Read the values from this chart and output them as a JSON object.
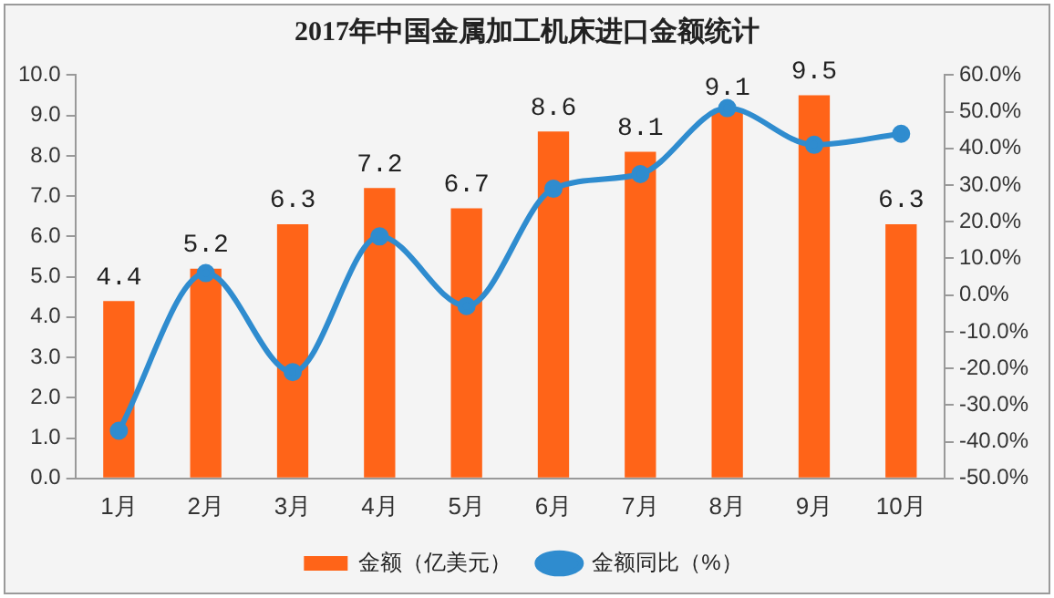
{
  "chart_data": {
    "type": "bar",
    "title": "2017年中国金属加工机床进口金额统计",
    "categories": [
      "1月",
      "2月",
      "3月",
      "4月",
      "5月",
      "6月",
      "7月",
      "8月",
      "9月",
      "10月"
    ],
    "series": [
      {
        "name": "金额（亿美元）",
        "type": "bar",
        "color": "#ff6418",
        "values": [
          4.4,
          5.2,
          6.3,
          7.2,
          6.7,
          8.6,
          8.1,
          9.1,
          9.5,
          6.3
        ],
        "value_labels": [
          "4.4",
          "5.2",
          "6.3",
          "7.2",
          "6.7",
          "8.6",
          "8.1",
          "9.1",
          "9.5",
          "6.3"
        ]
      },
      {
        "name": "金额同比（%）",
        "type": "line",
        "axis": "y2",
        "color": "#2f8ccf",
        "values": [
          -37,
          6,
          -21,
          16,
          -3,
          29,
          33,
          51,
          41,
          44
        ]
      }
    ],
    "ylim": [
      0,
      10
    ],
    "yticks": [
      {
        "value": 0,
        "label": "0.0"
      },
      {
        "value": 1,
        "label": "1.0"
      },
      {
        "value": 2,
        "label": "2.0"
      },
      {
        "value": 3,
        "label": "3.0"
      },
      {
        "value": 4,
        "label": "4.0"
      },
      {
        "value": 5,
        "label": "5.0"
      },
      {
        "value": 6,
        "label": "6.0"
      },
      {
        "value": 7,
        "label": "7.0"
      },
      {
        "value": 8,
        "label": "8.0"
      },
      {
        "value": 9,
        "label": "9.0"
      },
      {
        "value": 10,
        "label": "10.0"
      }
    ],
    "y2lim": [
      -50,
      60
    ],
    "y2ticks": [
      {
        "value": -50,
        "label": "-50.0%"
      },
      {
        "value": -40,
        "label": "-40.0%"
      },
      {
        "value": -30,
        "label": "-30.0%"
      },
      {
        "value": -20,
        "label": "-20.0%"
      },
      {
        "value": -10,
        "label": "-10.0%"
      },
      {
        "value": 0,
        "label": "0.0%"
      },
      {
        "value": 10,
        "label": "10.0%"
      },
      {
        "value": 20,
        "label": "20.0%"
      },
      {
        "value": 30,
        "label": "30.0%"
      },
      {
        "value": 40,
        "label": "40.0%"
      },
      {
        "value": 50,
        "label": "50.0%"
      },
      {
        "value": 60,
        "label": "60.0%"
      }
    ],
    "grid": false,
    "legend": "bottom",
    "marker": "circle"
  }
}
